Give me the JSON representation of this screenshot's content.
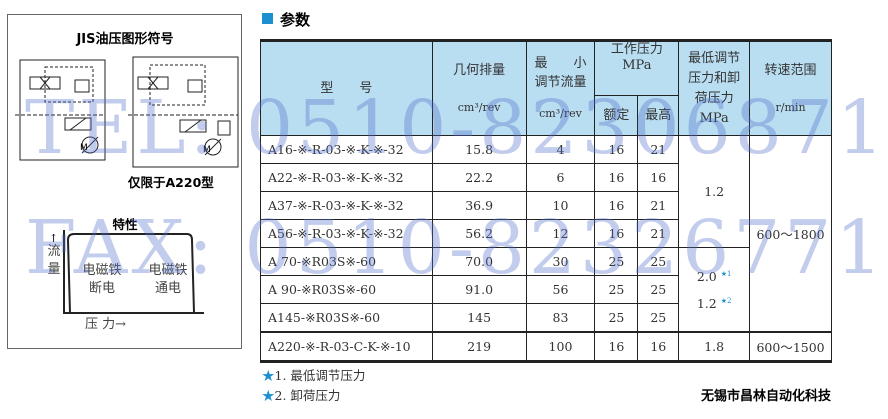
{
  "left_panel": {
    "symbol_title": "JIS油压图形符号",
    "a220_note": "仅限于A220型",
    "characteristic_title": "特性",
    "y_axis_label": "流\n量",
    "x_axis_label": "压 力→",
    "region_off": "电磁铁\n断电",
    "region_on": "电磁铁\n通电"
  },
  "section_title": "参数",
  "table": {
    "headers": {
      "model": "型　　号",
      "displacement": "几何排量",
      "displacement_unit": "cm³/rev",
      "min_flow": "最　　小\n调节流量",
      "min_flow_unit": "cm³/rev",
      "working_pressure": "工作压力\nMPa",
      "rated": "额定",
      "max": "最高",
      "min_pressure": "最低调节\n压力和卸\n荷压力\nMPa",
      "speed": "转速范围",
      "speed_unit": "r/min"
    },
    "rows": [
      {
        "model": "A16-※-R-03-※-K-※-32",
        "displacement": "15.8",
        "min_flow": "4",
        "rated": "16",
        "max": "21"
      },
      {
        "model": "A22-※-R-03-※-K-※-32",
        "displacement": "22.2",
        "min_flow": "6",
        "rated": "16",
        "max": "16"
      },
      {
        "model": "A37-※-R-03-※-K-※-32",
        "displacement": "36.9",
        "min_flow": "10",
        "rated": "16",
        "max": "21"
      },
      {
        "model": "A56-※-R-03-※-K-※-32",
        "displacement": "56.2",
        "min_flow": "12",
        "rated": "16",
        "max": "21"
      },
      {
        "model": "A 70-※R03S※-60",
        "displacement": "70.0",
        "min_flow": "30",
        "rated": "25",
        "max": "25"
      },
      {
        "model": "A 90-※R03S※-60",
        "displacement": "91.0",
        "min_flow": "56",
        "rated": "25",
        "max": "25"
      },
      {
        "model": "A145-※R03S※-60",
        "displacement": "145",
        "min_flow": "83",
        "rated": "25",
        "max": "25"
      },
      {
        "model": "A220-※-R-03-C-K-※-10",
        "displacement": "219",
        "min_flow": "100",
        "rated": "16",
        "max": "16",
        "min_pressure": "1.8",
        "speed": "600～1500"
      }
    ],
    "group1_min_pressure": "1.2",
    "group2_min_pressure_1": "2.0",
    "group2_min_pressure_2": "1.2",
    "star1": "★1",
    "star2": "★2",
    "speed_group": "600～1800"
  },
  "footnotes": [
    {
      "mark": "★",
      "text": "1. 最低调节压力"
    },
    {
      "mark": "★",
      "text": "2. 卸荷压力"
    }
  ],
  "company": "无锡市昌林自动化科技",
  "watermark": {
    "tel": "TEL: 0510-82306871",
    "fax": "FAX: 0510-82326771"
  },
  "colors": {
    "header_bg": "#b9def2",
    "accent": "#1b8fd0",
    "watermark": "#5070c8"
  }
}
